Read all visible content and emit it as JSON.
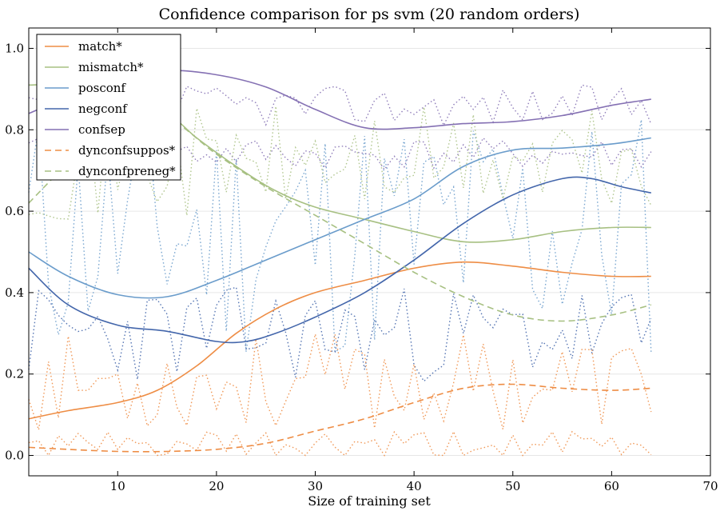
{
  "chart_data": {
    "type": "line",
    "title": "Confidence comparison for ps svm (20 random orders)",
    "xlabel": "Size of training set",
    "ylabel": "",
    "xlim": [
      1,
      70
    ],
    "ylim": [
      -0.05,
      1.05
    ],
    "xticks": [
      10,
      20,
      30,
      40,
      50,
      60,
      70
    ],
    "yticks": [
      0.0,
      0.2,
      0.4,
      0.6,
      0.8,
      1.0
    ],
    "grid": "horizontal",
    "legend_position": "top-left",
    "series": [
      {
        "name": "match*",
        "color": "#ee8d45",
        "style": "solid",
        "x": [
          1,
          5,
          10,
          14,
          18,
          22,
          26,
          30,
          35,
          40,
          45,
          50,
          55,
          60,
          64
        ],
        "y": [
          0.09,
          0.11,
          0.13,
          0.16,
          0.22,
          0.3,
          0.36,
          0.4,
          0.43,
          0.46,
          0.475,
          0.465,
          0.45,
          0.44,
          0.44
        ]
      },
      {
        "name": "mismatch*",
        "color": "#a7c082",
        "style": "solid",
        "x": [
          1,
          5,
          10,
          15,
          18,
          22,
          26,
          30,
          35,
          40,
          45,
          50,
          55,
          60,
          64
        ],
        "y": [
          0.91,
          0.91,
          0.89,
          0.84,
          0.78,
          0.71,
          0.65,
          0.61,
          0.58,
          0.55,
          0.525,
          0.53,
          0.55,
          0.56,
          0.56
        ]
      },
      {
        "name": "posconf",
        "color": "#6a9ccb",
        "style": "solid",
        "x": [
          1,
          5,
          10,
          15,
          20,
          25,
          30,
          35,
          40,
          45,
          50,
          55,
          60,
          64
        ],
        "y": [
          0.5,
          0.44,
          0.395,
          0.39,
          0.43,
          0.48,
          0.53,
          0.58,
          0.63,
          0.71,
          0.75,
          0.755,
          0.765,
          0.78
        ]
      },
      {
        "name": "negconf",
        "color": "#4366ab",
        "style": "solid",
        "x": [
          1,
          5,
          10,
          15,
          20,
          23,
          26,
          30,
          35,
          40,
          45,
          50,
          55,
          58,
          61,
          64
        ],
        "y": [
          0.46,
          0.37,
          0.32,
          0.305,
          0.28,
          0.28,
          0.3,
          0.34,
          0.4,
          0.48,
          0.57,
          0.64,
          0.68,
          0.68,
          0.66,
          0.645
        ]
      },
      {
        "name": "confsep",
        "color": "#8470b3",
        "style": "solid",
        "x": [
          1,
          5,
          10,
          15,
          20,
          25,
          30,
          35,
          40,
          45,
          50,
          55,
          60,
          64
        ],
        "y": [
          0.84,
          0.88,
          0.92,
          0.945,
          0.935,
          0.905,
          0.85,
          0.805,
          0.805,
          0.815,
          0.82,
          0.835,
          0.86,
          0.875
        ]
      },
      {
        "name": "dynconfsuppos*",
        "color": "#ee8d45",
        "style": "dashed",
        "x": [
          1,
          5,
          10,
          15,
          20,
          25,
          30,
          35,
          40,
          45,
          50,
          55,
          60,
          64
        ],
        "y": [
          0.02,
          0.015,
          0.01,
          0.01,
          0.015,
          0.03,
          0.06,
          0.09,
          0.13,
          0.165,
          0.175,
          0.165,
          0.16,
          0.165
        ]
      },
      {
        "name": "dynconfpreneg*",
        "color": "#a7c082",
        "style": "dashed",
        "x": [
          1,
          5,
          10,
          15,
          20,
          25,
          30,
          35,
          40,
          45,
          50,
          55,
          60,
          64
        ],
        "y": [
          0.62,
          0.72,
          0.84,
          0.83,
          0.74,
          0.66,
          0.59,
          0.52,
          0.45,
          0.39,
          0.345,
          0.33,
          0.345,
          0.37
        ]
      }
    ],
    "background_traces": [
      {
        "color": "#6a9ccb",
        "seed": 11,
        "base": 0.55,
        "amp": 0.32
      },
      {
        "color": "#4366ab",
        "seed": 23,
        "base": 0.3,
        "amp": 0.12
      },
      {
        "color": "#8470b3",
        "seed": 37,
        "base": 0.86,
        "amp": 0.05
      },
      {
        "color": "#8470b3",
        "seed": 41,
        "base": 0.74,
        "amp": 0.04
      },
      {
        "color": "#ee8d45",
        "seed": 53,
        "base": 0.18,
        "amp": 0.12
      },
      {
        "color": "#ee8d45",
        "seed": 61,
        "base": 0.02,
        "amp": 0.04
      },
      {
        "color": "#a7c082",
        "seed": 71,
        "base": 0.72,
        "amp": 0.14
      }
    ]
  }
}
